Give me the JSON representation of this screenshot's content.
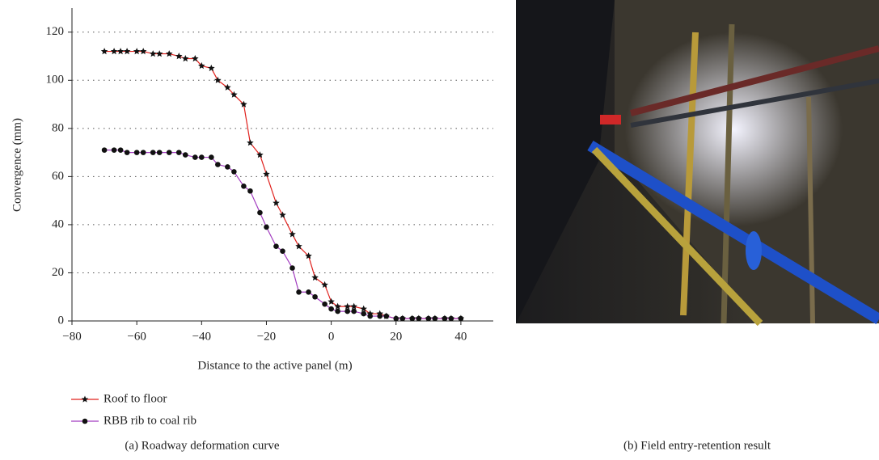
{
  "chart_data": {
    "type": "line",
    "y_label": "Convergence (mm)",
    "x_label": "Distance to the active panel (m)",
    "caption": "(a)  Roadway deformation curve",
    "x": [
      -70,
      -67,
      -65,
      -63,
      -60,
      -58,
      -55,
      -53,
      -50,
      -47,
      -45,
      -42,
      -40,
      -37,
      -35,
      -32,
      -30,
      -27,
      -25,
      -22,
      -20,
      -17,
      -15,
      -12,
      -10,
      -7,
      -5,
      -2,
      0,
      2,
      5,
      7,
      10,
      12,
      15,
      17,
      20,
      22,
      25,
      27,
      30,
      32,
      35,
      37,
      40
    ],
    "series": [
      {
        "name": "Roof to floor",
        "color": "#e0201c",
        "marker": "star",
        "values": [
          112,
          112,
          112,
          112,
          112,
          112,
          111,
          111,
          111,
          110,
          109,
          109,
          106,
          105,
          100,
          97,
          94,
          90,
          74,
          69,
          61,
          49,
          44,
          36,
          31,
          27,
          18,
          15,
          8,
          6,
          6,
          6,
          5,
          3,
          3,
          2,
          1,
          1,
          1,
          1,
          1,
          1,
          1,
          1,
          1
        ]
      },
      {
        "name": "RBB rib to coal rib",
        "color": "#a23cc0",
        "marker": "circle",
        "values": [
          71,
          71,
          71,
          70,
          70,
          70,
          70,
          70,
          70,
          70,
          69,
          68,
          68,
          68,
          65,
          64,
          62,
          56,
          54,
          45,
          39,
          31,
          29,
          22,
          12,
          12,
          10,
          7,
          5,
          4,
          4,
          4,
          3,
          2,
          2,
          2,
          1,
          1,
          1,
          1,
          1,
          1,
          1,
          1,
          1
        ]
      }
    ],
    "xlim": [
      -80,
      50
    ],
    "xticks": [
      {
        "value": -80,
        "label": "−80"
      },
      {
        "value": -60,
        "label": "−60"
      },
      {
        "value": -40,
        "label": "−40"
      },
      {
        "value": -20,
        "label": "−20"
      },
      0,
      20,
      40
    ],
    "ylim": [
      0,
      130
    ],
    "yticks": [
      0,
      20,
      40,
      60,
      80,
      100,
      120
    ],
    "grid": true
  },
  "photo": {
    "caption": "(b)  Field entry-retention result"
  }
}
